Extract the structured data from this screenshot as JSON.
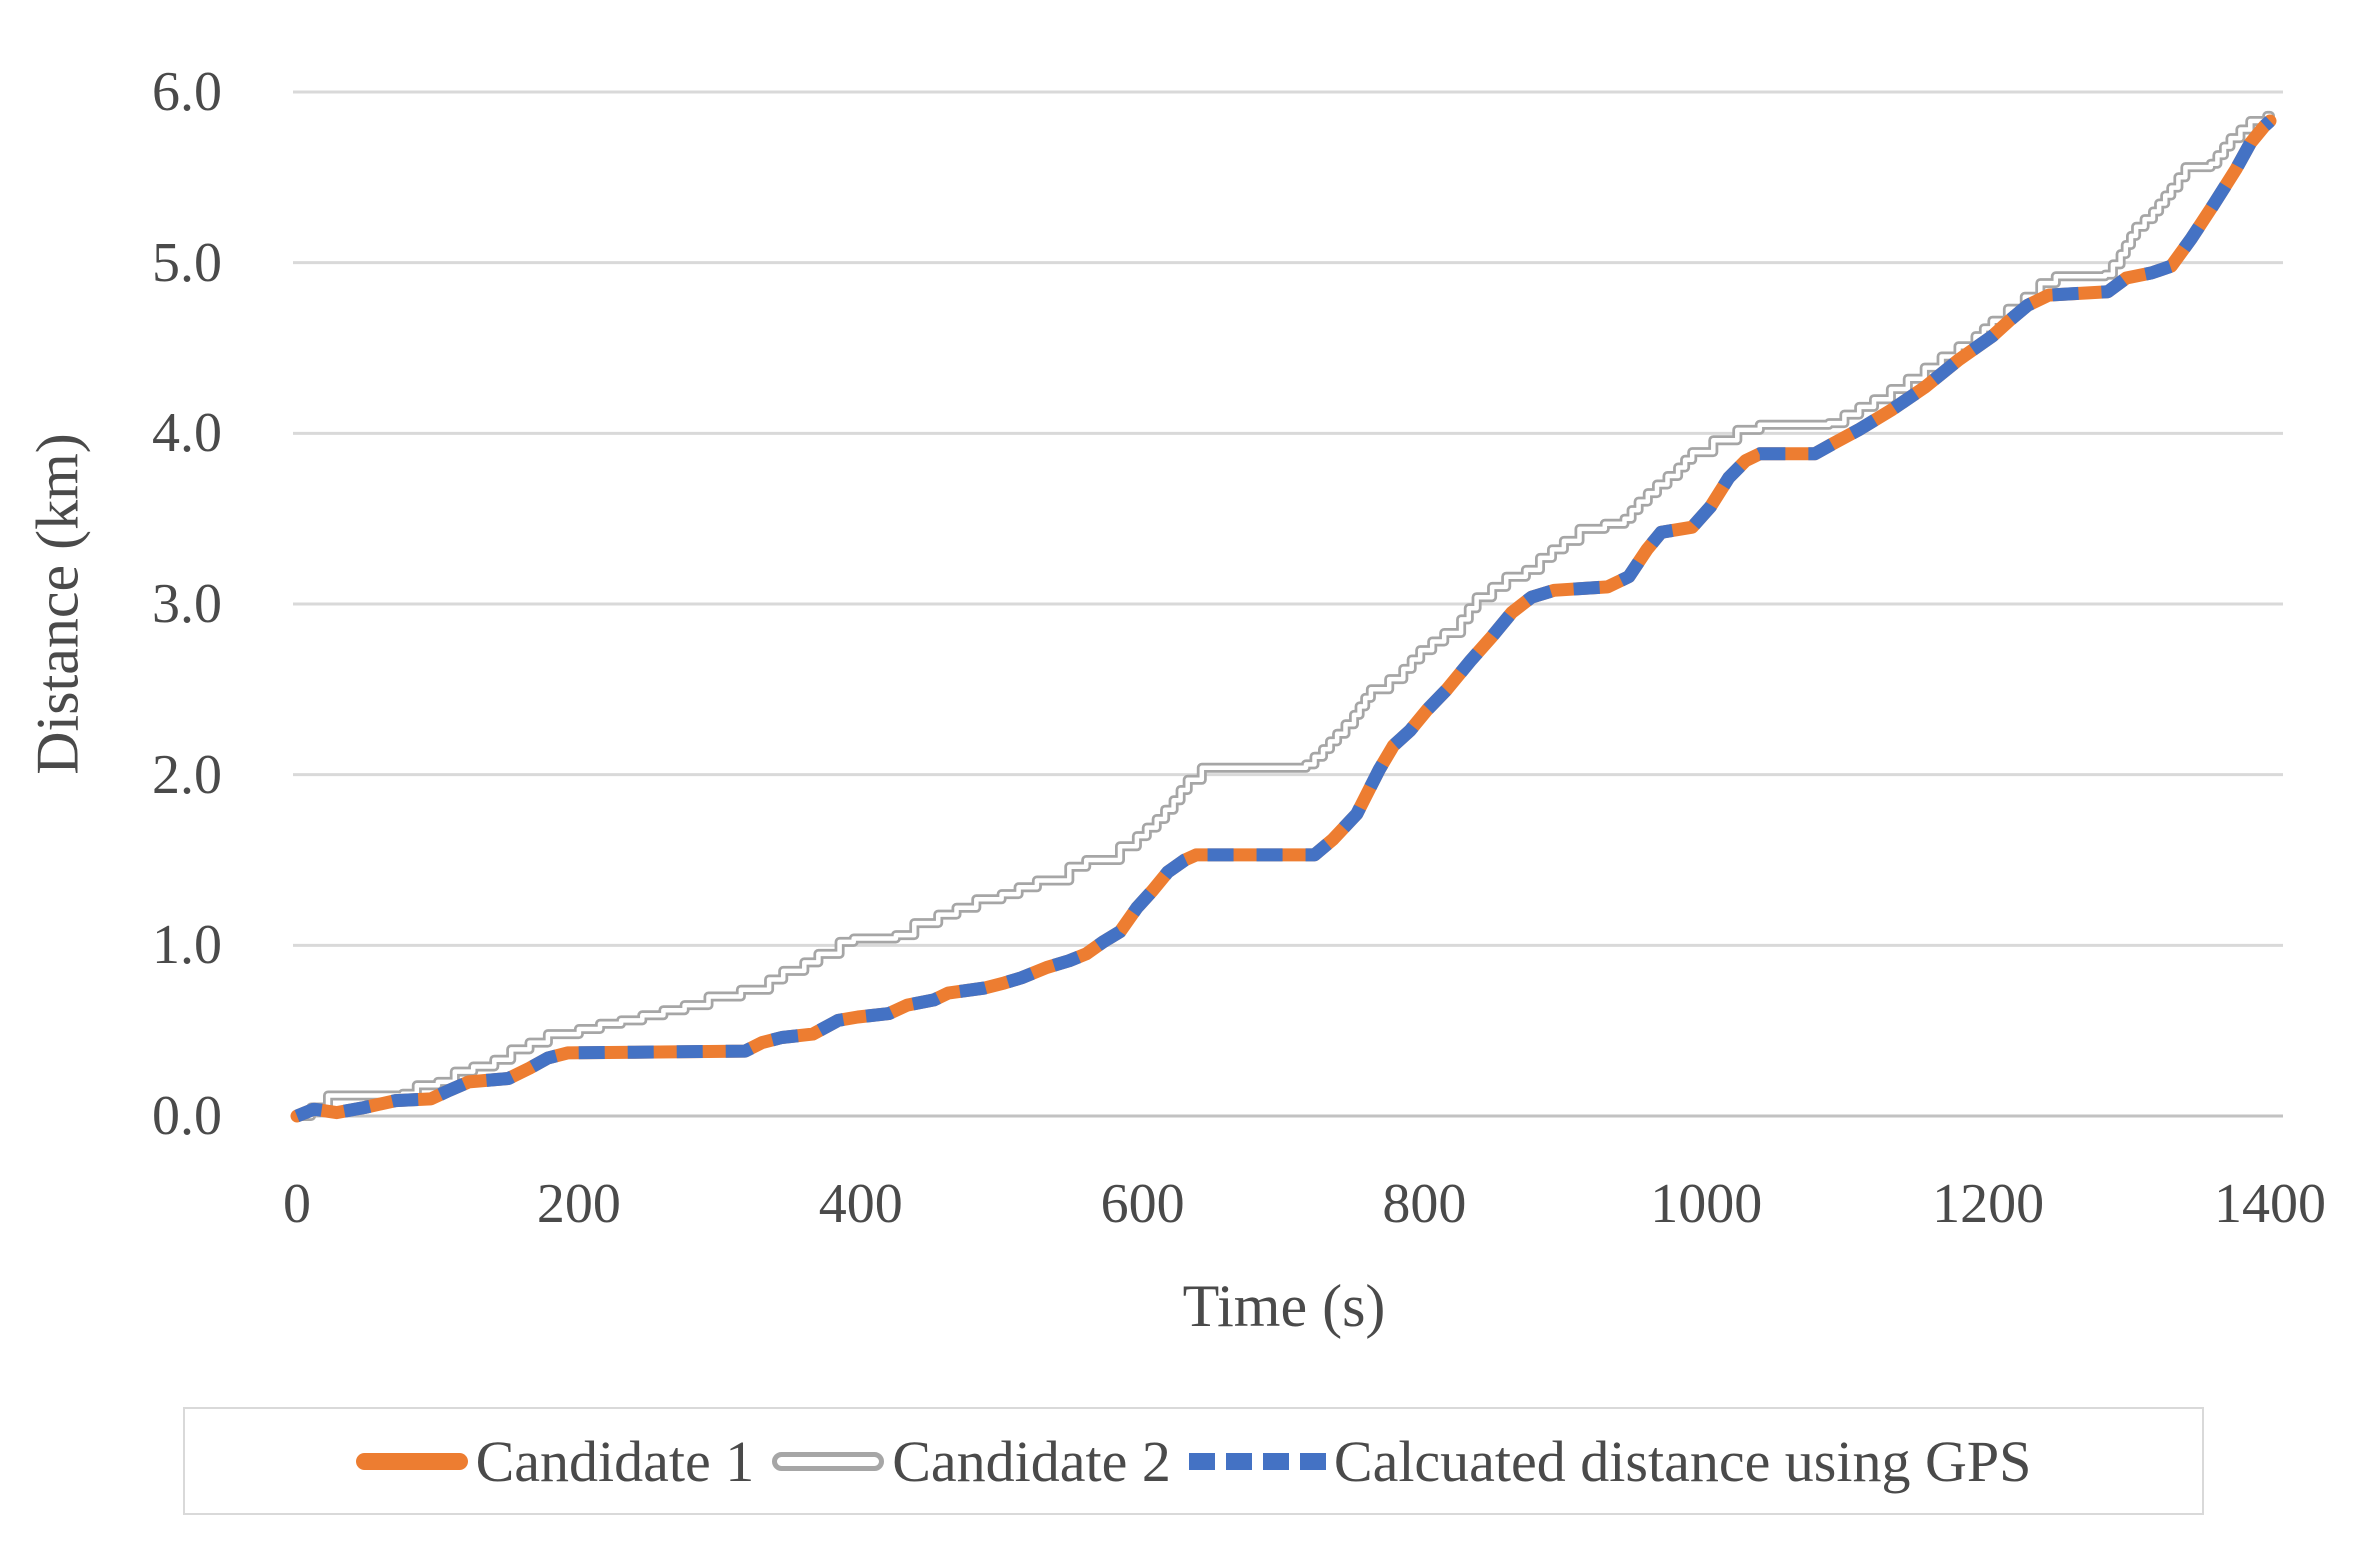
{
  "chart_data": {
    "type": "line",
    "title": "",
    "xlabel": "Time (s)",
    "ylabel": "Distance (km)",
    "xlim": [
      0,
      1400
    ],
    "ylim": [
      0,
      6
    ],
    "x_ticks": [
      "0",
      "200",
      "400",
      "600",
      "800",
      "1000",
      "1200",
      "1400"
    ],
    "x_tick_values": [
      0,
      200,
      400,
      600,
      800,
      1000,
      1200,
      1400
    ],
    "y_ticks": [
      "0.0",
      "1.0",
      "2.0",
      "3.0",
      "4.0",
      "5.0",
      "6.0"
    ],
    "y_tick_values": [
      0,
      1,
      2,
      3,
      4,
      5,
      6
    ],
    "grid": "horizontal",
    "legend_position": "bottom",
    "colors": {
      "grid": "#D9D9D9",
      "axis_line": "#C2C2C2",
      "text": "#4a4a4a",
      "background": "#FFFFFF"
    },
    "series": [
      {
        "name": "Candidate 1",
        "color": "#ED7D31",
        "style": "solid",
        "line_width": 13,
        "draw_order": 1,
        "points": [
          [
            0,
            0
          ],
          [
            12,
            0.04
          ],
          [
            28,
            0.02
          ],
          [
            48,
            0.05
          ],
          [
            70,
            0.09
          ],
          [
            95,
            0.1
          ],
          [
            108,
            0.15
          ],
          [
            122,
            0.2
          ],
          [
            150,
            0.22
          ],
          [
            165,
            0.28
          ],
          [
            178,
            0.34
          ],
          [
            192,
            0.37
          ],
          [
            318,
            0.38
          ],
          [
            330,
            0.43
          ],
          [
            344,
            0.46
          ],
          [
            366,
            0.48
          ],
          [
            384,
            0.56
          ],
          [
            398,
            0.58
          ],
          [
            420,
            0.6
          ],
          [
            433,
            0.65
          ],
          [
            452,
            0.68
          ],
          [
            462,
            0.72
          ],
          [
            488,
            0.75
          ],
          [
            502,
            0.78
          ],
          [
            514,
            0.81
          ],
          [
            532,
            0.87
          ],
          [
            548,
            0.91
          ],
          [
            560,
            0.95
          ],
          [
            572,
            1.02
          ],
          [
            584,
            1.08
          ],
          [
            596,
            1.22
          ],
          [
            607,
            1.32
          ],
          [
            618,
            1.43
          ],
          [
            630,
            1.5
          ],
          [
            638,
            1.53
          ],
          [
            722,
            1.53
          ],
          [
            735,
            1.62
          ],
          [
            752,
            1.77
          ],
          [
            768,
            2.03
          ],
          [
            778,
            2.17
          ],
          [
            790,
            2.26
          ],
          [
            802,
            2.38
          ],
          [
            816,
            2.5
          ],
          [
            833,
            2.67
          ],
          [
            848,
            2.81
          ],
          [
            862,
            2.95
          ],
          [
            876,
            3.04
          ],
          [
            892,
            3.08
          ],
          [
            930,
            3.1
          ],
          [
            945,
            3.16
          ],
          [
            958,
            3.32
          ],
          [
            968,
            3.42
          ],
          [
            990,
            3.45
          ],
          [
            1003,
            3.57
          ],
          [
            1016,
            3.74
          ],
          [
            1028,
            3.84
          ],
          [
            1038,
            3.88
          ],
          [
            1077,
            3.88
          ],
          [
            1090,
            3.94
          ],
          [
            1108,
            4.02
          ],
          [
            1132,
            4.14
          ],
          [
            1155,
            4.27
          ],
          [
            1179,
            4.43
          ],
          [
            1203,
            4.57
          ],
          [
            1215,
            4.66
          ],
          [
            1228,
            4.75
          ],
          [
            1243,
            4.81
          ],
          [
            1285,
            4.83
          ],
          [
            1298,
            4.91
          ],
          [
            1316,
            4.94
          ],
          [
            1330,
            4.98
          ],
          [
            1344,
            5.14
          ],
          [
            1360,
            5.34
          ],
          [
            1376,
            5.55
          ],
          [
            1386,
            5.7
          ],
          [
            1396,
            5.8
          ],
          [
            1400,
            5.83
          ]
        ]
      },
      {
        "name": "Candidate 2",
        "color": "#A6A6A6",
        "style": "step-outlined",
        "inner_color": "#FFFFFF",
        "line_width": 10,
        "step_km": 0.055,
        "draw_order": 0,
        "points": [
          [
            0,
            0
          ],
          [
            10,
            0.05
          ],
          [
            22,
            0.12
          ],
          [
            75,
            0.13
          ],
          [
            85,
            0.18
          ],
          [
            100,
            0.2
          ],
          [
            112,
            0.26
          ],
          [
            125,
            0.29
          ],
          [
            140,
            0.33
          ],
          [
            152,
            0.39
          ],
          [
            165,
            0.43
          ],
          [
            178,
            0.48
          ],
          [
            200,
            0.51
          ],
          [
            215,
            0.54
          ],
          [
            230,
            0.56
          ],
          [
            245,
            0.59
          ],
          [
            260,
            0.62
          ],
          [
            275,
            0.65
          ],
          [
            292,
            0.7
          ],
          [
            315,
            0.74
          ],
          [
            335,
            0.8
          ],
          [
            345,
            0.85
          ],
          [
            360,
            0.9
          ],
          [
            370,
            0.95
          ],
          [
            385,
            1.02
          ],
          [
            395,
            1.04
          ],
          [
            425,
            1.06
          ],
          [
            438,
            1.13
          ],
          [
            455,
            1.18
          ],
          [
            468,
            1.22
          ],
          [
            482,
            1.27
          ],
          [
            500,
            1.3
          ],
          [
            512,
            1.34
          ],
          [
            525,
            1.38
          ],
          [
            548,
            1.46
          ],
          [
            560,
            1.5
          ],
          [
            584,
            1.58
          ],
          [
            596,
            1.64
          ],
          [
            610,
            1.74
          ],
          [
            622,
            1.85
          ],
          [
            632,
            1.97
          ],
          [
            642,
            2.04
          ],
          [
            716,
            2.06
          ],
          [
            728,
            2.15
          ],
          [
            738,
            2.24
          ],
          [
            750,
            2.35
          ],
          [
            762,
            2.5
          ],
          [
            775,
            2.56
          ],
          [
            785,
            2.62
          ],
          [
            797,
            2.73
          ],
          [
            814,
            2.83
          ],
          [
            826,
            2.91
          ],
          [
            837,
            3.04
          ],
          [
            848,
            3.1
          ],
          [
            858,
            3.16
          ],
          [
            872,
            3.2
          ],
          [
            882,
            3.27
          ],
          [
            899,
            3.37
          ],
          [
            910,
            3.44
          ],
          [
            928,
            3.47
          ],
          [
            942,
            3.5
          ],
          [
            952,
            3.6
          ],
          [
            965,
            3.7
          ],
          [
            980,
            3.8
          ],
          [
            990,
            3.89
          ],
          [
            1005,
            3.96
          ],
          [
            1022,
            4.02
          ],
          [
            1038,
            4.05
          ],
          [
            1087,
            4.06
          ],
          [
            1098,
            4.11
          ],
          [
            1119,
            4.2
          ],
          [
            1143,
            4.32
          ],
          [
            1167,
            4.45
          ],
          [
            1191,
            4.57
          ],
          [
            1203,
            4.66
          ],
          [
            1214,
            4.73
          ],
          [
            1226,
            4.8
          ],
          [
            1237,
            4.88
          ],
          [
            1248,
            4.92
          ],
          [
            1283,
            4.93
          ],
          [
            1294,
            5.05
          ],
          [
            1305,
            5.21
          ],
          [
            1317,
            5.3
          ],
          [
            1330,
            5.44
          ],
          [
            1340,
            5.56
          ],
          [
            1358,
            5.58
          ],
          [
            1372,
            5.73
          ],
          [
            1386,
            5.83
          ],
          [
            1398,
            5.86
          ],
          [
            1400,
            5.86
          ]
        ]
      },
      {
        "name": "Calcuated distance using GPS",
        "color": "#4472C4",
        "style": "dashed",
        "line_width": 13,
        "dash": [
          26,
          23
        ],
        "draw_order": 2,
        "points": [
          [
            0,
            0
          ],
          [
            12,
            0.04
          ],
          [
            28,
            0.02
          ],
          [
            48,
            0.05
          ],
          [
            70,
            0.09
          ],
          [
            95,
            0.1
          ],
          [
            108,
            0.15
          ],
          [
            122,
            0.2
          ],
          [
            150,
            0.22
          ],
          [
            165,
            0.28
          ],
          [
            178,
            0.34
          ],
          [
            192,
            0.37
          ],
          [
            318,
            0.38
          ],
          [
            330,
            0.43
          ],
          [
            344,
            0.46
          ],
          [
            366,
            0.48
          ],
          [
            384,
            0.56
          ],
          [
            398,
            0.58
          ],
          [
            420,
            0.6
          ],
          [
            433,
            0.65
          ],
          [
            452,
            0.68
          ],
          [
            462,
            0.72
          ],
          [
            488,
            0.75
          ],
          [
            502,
            0.78
          ],
          [
            514,
            0.81
          ],
          [
            532,
            0.87
          ],
          [
            548,
            0.91
          ],
          [
            560,
            0.95
          ],
          [
            572,
            1.02
          ],
          [
            584,
            1.08
          ],
          [
            596,
            1.22
          ],
          [
            607,
            1.32
          ],
          [
            618,
            1.43
          ],
          [
            630,
            1.5
          ],
          [
            638,
            1.53
          ],
          [
            722,
            1.53
          ],
          [
            735,
            1.62
          ],
          [
            752,
            1.77
          ],
          [
            768,
            2.03
          ],
          [
            778,
            2.17
          ],
          [
            790,
            2.26
          ],
          [
            802,
            2.38
          ],
          [
            816,
            2.5
          ],
          [
            833,
            2.67
          ],
          [
            848,
            2.81
          ],
          [
            862,
            2.95
          ],
          [
            876,
            3.04
          ],
          [
            892,
            3.08
          ],
          [
            930,
            3.1
          ],
          [
            945,
            3.16
          ],
          [
            958,
            3.32
          ],
          [
            968,
            3.42
          ],
          [
            990,
            3.45
          ],
          [
            1003,
            3.57
          ],
          [
            1016,
            3.74
          ],
          [
            1028,
            3.84
          ],
          [
            1038,
            3.88
          ],
          [
            1077,
            3.88
          ],
          [
            1090,
            3.94
          ],
          [
            1108,
            4.02
          ],
          [
            1132,
            4.14
          ],
          [
            1155,
            4.27
          ],
          [
            1179,
            4.43
          ],
          [
            1203,
            4.57
          ],
          [
            1215,
            4.66
          ],
          [
            1228,
            4.75
          ],
          [
            1243,
            4.81
          ],
          [
            1285,
            4.83
          ],
          [
            1298,
            4.91
          ],
          [
            1316,
            4.94
          ],
          [
            1330,
            4.98
          ],
          [
            1344,
            5.14
          ],
          [
            1360,
            5.34
          ],
          [
            1376,
            5.55
          ],
          [
            1386,
            5.7
          ],
          [
            1396,
            5.8
          ],
          [
            1400,
            5.83
          ]
        ]
      }
    ]
  }
}
